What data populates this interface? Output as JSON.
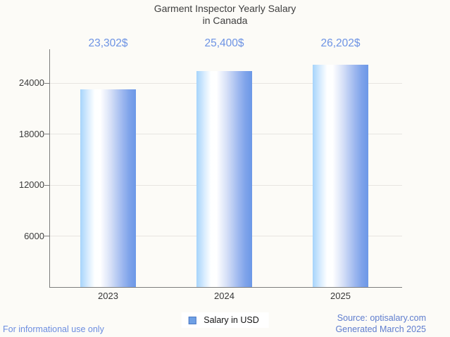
{
  "title": {
    "line1": "Garment Inspector Yearly Salary",
    "line2": "in Canada"
  },
  "chart_data": {
    "type": "bar",
    "title": "Garment Inspector Yearly Salary in Canada",
    "categories": [
      "2023",
      "2024",
      "2025"
    ],
    "series": [
      {
        "name": "Salary in USD",
        "values": [
          23302,
          25400,
          26202
        ]
      }
    ],
    "value_labels": [
      "23,302$",
      "25,400$",
      "26,202$"
    ],
    "xlabel": "",
    "ylabel": "",
    "yticks": [
      6000,
      12000,
      18000,
      24000
    ],
    "ylim": [
      0,
      28000
    ],
    "grid": true,
    "legend_position": "bottom"
  },
  "legend": {
    "label": "Salary in USD"
  },
  "footer": {
    "left": "For informational use only",
    "source": "Source: optisalary.com",
    "generated": "Generated March 2025"
  },
  "colors": {
    "background": "#FCFBF7",
    "title_text": "#3E3E3E",
    "value_label_text": "#6D93E4",
    "axis_line": "#7D7D7D",
    "gridline": "#E7E5E1",
    "tick_label_text": "#3C3C3C",
    "bar_edge_left": "#A6D4FB",
    "bar_highlight": "#FFFFFF",
    "bar_edge_right": "#6C98E7",
    "legend_swatch_fill": "#6FA0E5",
    "legend_swatch_border": "#4B79C4",
    "footer_left_text": "#6C8DE0",
    "footer_right_text": "#5F7DCE"
  }
}
